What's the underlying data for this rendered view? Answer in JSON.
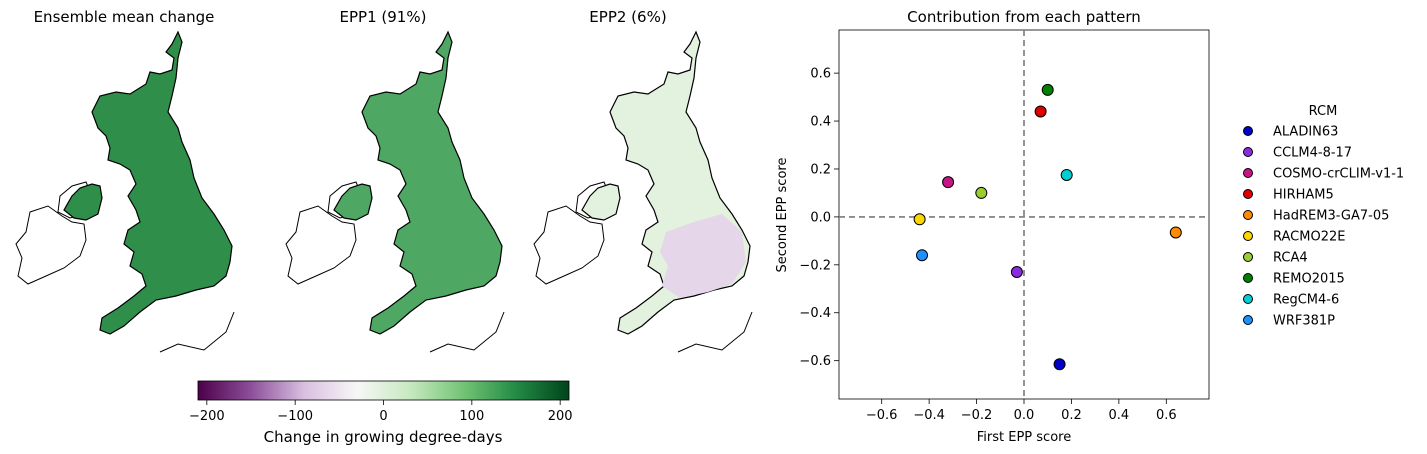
{
  "maps": {
    "panels": [
      {
        "title": "Ensemble mean change"
      },
      {
        "title": "EPP1 (91%)"
      },
      {
        "title": "EPP2 (6%)"
      }
    ],
    "colorbar": {
      "label": "Change in growing degree-days",
      "ticks": [
        "−200",
        "−100",
        "0",
        "100",
        "200"
      ],
      "range": [
        -210,
        210
      ],
      "colors": [
        "#4d004b",
        "#8c4f9a",
        "#d9bfe0",
        "#f7f7f7",
        "#c7e9c0",
        "#74c476",
        "#238b45",
        "#00441b"
      ]
    }
  },
  "chart_data": {
    "type": "scatter",
    "title": "Contribution from each pattern",
    "xlabel": "First EPP score",
    "ylabel": "Second EPP score",
    "xlim": [
      -0.78,
      0.78
    ],
    "ylim": [
      -0.76,
      0.78
    ],
    "xticks": [
      -0.6,
      -0.4,
      -0.2,
      0.0,
      0.2,
      0.4,
      0.6
    ],
    "yticks": [
      -0.6,
      -0.4,
      -0.2,
      0.0,
      0.2,
      0.4,
      0.6
    ],
    "xtick_labels": [
      "−0.6",
      "−0.4",
      "−0.2",
      "0.0",
      "0.2",
      "0.4",
      "0.6"
    ],
    "ytick_labels": [
      "−0.6",
      "−0.4",
      "−0.2",
      "0.0",
      "0.2",
      "0.4",
      "0.6"
    ],
    "reference_lines": {
      "x": 0.0,
      "y": 0.0
    },
    "grid": false,
    "legend": {
      "title": "RCM",
      "placement": "right outside"
    },
    "series": [
      {
        "name": "ALADIN63",
        "color": "#0000c8",
        "x": 0.15,
        "y": -0.615
      },
      {
        "name": "CCLM4-8-17",
        "color": "#8a2be2",
        "x": -0.03,
        "y": -0.23
      },
      {
        "name": "COSMO-crCLIM-v1-1",
        "color": "#c71585",
        "x": -0.32,
        "y": 0.145
      },
      {
        "name": "HIRHAM5",
        "color": "#e00000",
        "x": 0.07,
        "y": 0.44
      },
      {
        "name": "HadREM3-GA7-05",
        "color": "#ff8c00",
        "x": 0.64,
        "y": -0.065
      },
      {
        "name": "RACMO22E",
        "color": "#ffd700",
        "x": -0.44,
        "y": -0.01
      },
      {
        "name": "RCA4",
        "color": "#9acd32",
        "x": -0.18,
        "y": 0.1
      },
      {
        "name": "REMO2015",
        "color": "#008000",
        "x": 0.1,
        "y": 0.53
      },
      {
        "name": "RegCM4-6",
        "color": "#00ced1",
        "x": 0.18,
        "y": 0.175
      },
      {
        "name": "WRF381P",
        "color": "#1e90ff",
        "x": -0.43,
        "y": -0.16
      }
    ]
  }
}
